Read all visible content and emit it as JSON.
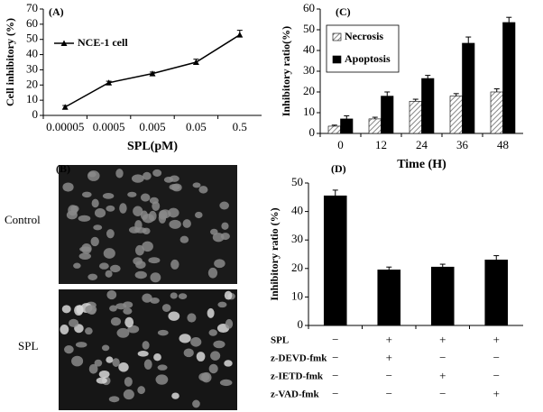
{
  "chart_data": [
    {
      "type": "line",
      "panel": "(A)",
      "y_label": "Cell inhibitory (%)",
      "x_label": "SPL(pM)",
      "categories": [
        "0.00005",
        "0.0005",
        "0.005",
        "0.05",
        "0.5"
      ],
      "series": [
        {
          "name": "NCE-1 cell",
          "color": "#000000",
          "values": [
            5.5,
            21.5,
            27.5,
            35,
            53
          ],
          "errors": [
            1,
            1,
            1,
            2,
            3
          ]
        }
      ],
      "ylim": [
        0,
        70
      ],
      "yticks": [
        0,
        10,
        20,
        30,
        40,
        50,
        60,
        70
      ],
      "grid": false
    },
    {
      "type": "bar",
      "panel": "(C)",
      "y_label": "Inhibitory ratio(%)",
      "x_label": "Time (H)",
      "categories": [
        "0",
        "12",
        "24",
        "36",
        "48"
      ],
      "series": [
        {
          "name": "Necrosis",
          "color": "#aaaaaa",
          "pattern": "hatch",
          "values": [
            3.5,
            7,
            15.5,
            18,
            20
          ],
          "errors": [
            0.5,
            0.8,
            1,
            1.2,
            1.5
          ]
        },
        {
          "name": "Apoptosis",
          "color": "#000000",
          "values": [
            7,
            18,
            26.5,
            43.5,
            53.5
          ],
          "errors": [
            1.5,
            2,
            1.5,
            3,
            2.5
          ]
        }
      ],
      "ylim": [
        0,
        60
      ],
      "yticks": [
        0,
        10,
        20,
        30,
        40,
        50,
        60
      ],
      "grid": false
    },
    {
      "type": "bar",
      "panel": "(D)",
      "y_label": "Inhibitory ratio (%)",
      "categories": [
        null,
        null,
        null,
        null
      ],
      "series": [
        {
          "color": "#000000",
          "values": [
            45.5,
            19.5,
            20.5,
            23
          ],
          "errors": [
            2,
            1,
            1,
            1.5
          ]
        }
      ],
      "ylim": [
        0,
        50
      ],
      "yticks": [
        0,
        10,
        20,
        30,
        40,
        50
      ],
      "grid": false,
      "treatments": [
        {
          "name": "SPL",
          "signs": [
            "−",
            "+",
            "+",
            "+"
          ]
        },
        {
          "name": "z-DEVD-fmk",
          "signs": [
            "−",
            "+",
            "−",
            "−"
          ]
        },
        {
          "name": "z-IETD-fmk",
          "signs": [
            "−",
            "−",
            "+",
            "−"
          ]
        },
        {
          "name": "z-VAD-fmk",
          "signs": [
            "−",
            "−",
            "−",
            "+"
          ]
        }
      ]
    }
  ],
  "image_panel": {
    "panel": "(B)",
    "rows": [
      "Control",
      "SPL"
    ]
  }
}
